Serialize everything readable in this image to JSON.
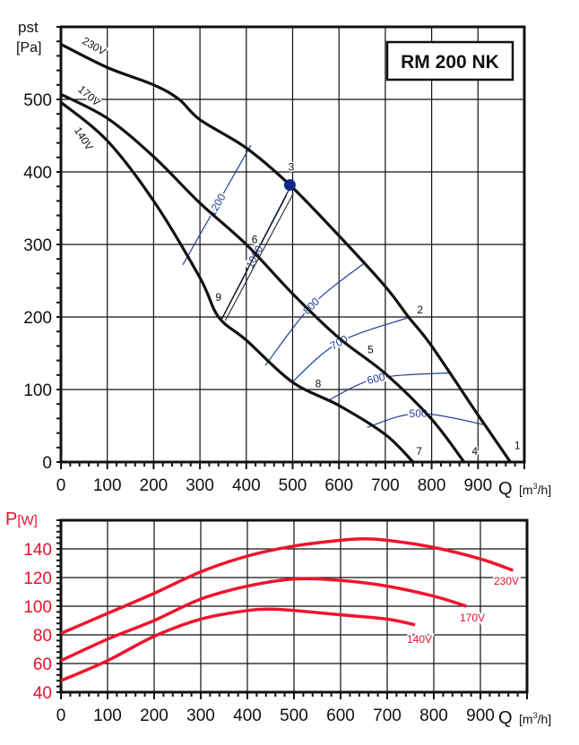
{
  "chart_data": [
    {
      "type": "line",
      "title": "RM 200 NK",
      "ylabel": "pst",
      "yunit": "[Pa]",
      "xlabel": "Q",
      "xunit_pre": "[m",
      "xunit_sup": "3",
      "xunit_post": "/h]",
      "xlim": [
        0,
        1000
      ],
      "ylim": [
        0,
        600
      ],
      "xticks": [
        0,
        100,
        200,
        300,
        400,
        500,
        600,
        700,
        800,
        900
      ],
      "yticks": [
        0,
        100,
        200,
        300,
        400,
        500
      ],
      "grid": true,
      "series": [
        {
          "name": "230V",
          "color": "#111111",
          "x": [
            0,
            100,
            200,
            255,
            300,
            400,
            494,
            600,
            700,
            750,
            800,
            900,
            970
          ],
          "y": [
            576,
            544,
            520,
            500,
            472,
            433,
            382,
            312,
            242,
            200,
            160,
            65,
            0
          ]
        },
        {
          "name": "170V",
          "color": "#111111",
          "x": [
            0,
            100,
            200,
            300,
            400,
            500,
            600,
            700,
            800,
            870
          ],
          "y": [
            507,
            474,
            421,
            357,
            300,
            232,
            171,
            122,
            59,
            0
          ]
        },
        {
          "name": "140V",
          "color": "#111111",
          "x": [
            0,
            100,
            200,
            300,
            340,
            400,
            500,
            600,
            700,
            760
          ],
          "y": [
            496,
            443,
            360,
            254,
            200,
            168,
            110,
            78,
            38,
            0
          ]
        }
      ],
      "iso_lines": [
        {
          "label": "1200",
          "color": "#1f3f9a",
          "x": [
            263,
            410
          ],
          "y": [
            272,
            437
          ]
        },
        {
          "label": "1000",
          "color": "#1f3f9a",
          "x": [
            348,
            487
          ],
          "y": [
            198,
            368
          ]
        },
        {
          "label": "800",
          "color": "#1f3f9a",
          "x": [
            441,
            540,
            656
          ],
          "y": [
            133,
            215,
            275
          ]
        },
        {
          "label": "700",
          "color": "#1f3f9a",
          "x": [
            497,
            600,
            754
          ],
          "y": [
            109,
            165,
            200
          ]
        },
        {
          "label": "600",
          "color": "#1f3f9a",
          "x": [
            574,
            680,
            839
          ],
          "y": [
            84,
            115,
            123
          ]
        },
        {
          "label": "500",
          "color": "#1f3f9a",
          "x": [
            661,
            771,
            917
          ],
          "y": [
            48,
            67,
            51
          ]
        }
      ],
      "system_line": {
        "x": [
          345,
          494
        ],
        "y": [
          195,
          378
        ]
      },
      "operating_point": {
        "label": "3",
        "x": 494,
        "y": 382,
        "color": "#0a2a8c"
      },
      "point_labels": [
        {
          "label": "1",
          "x": 985,
          "y": 18
        },
        {
          "label": "2",
          "x": 775,
          "y": 205
        },
        {
          "label": "3",
          "x": 497,
          "y": 402
        },
        {
          "label": "4",
          "x": 893,
          "y": 10
        },
        {
          "label": "5",
          "x": 668,
          "y": 150
        },
        {
          "label": "6",
          "x": 418,
          "y": 302
        },
        {
          "label": "7",
          "x": 773,
          "y": 10
        },
        {
          "label": "8",
          "x": 555,
          "y": 103
        },
        {
          "label": "9",
          "x": 340,
          "y": 222
        }
      ]
    },
    {
      "type": "line",
      "ylabel": "P",
      "yunit": "[W]",
      "xlabel": "Q",
      "xunit_pre": "[m",
      "xunit_sup": "3",
      "xunit_post": "/h]",
      "xlim": [
        0,
        1000
      ],
      "ylim": [
        40,
        160
      ],
      "xticks": [
        0,
        100,
        200,
        300,
        400,
        500,
        600,
        700,
        800,
        900
      ],
      "yticks": [
        40,
        60,
        80,
        100,
        120,
        140
      ],
      "grid": true,
      "color": "#e8112d",
      "series": [
        {
          "name": "230V",
          "color": "#f0142d",
          "x": [
            0,
            100,
            200,
            300,
            400,
            500,
            600,
            650,
            700,
            800,
            900,
            970
          ],
          "y": [
            81,
            95,
            109,
            124,
            135,
            142,
            146,
            147,
            146,
            141,
            133,
            125
          ]
        },
        {
          "name": "170V",
          "color": "#f0142d",
          "x": [
            0,
            100,
            200,
            300,
            400,
            500,
            600,
            700,
            800,
            870
          ],
          "y": [
            62,
            77,
            90,
            105,
            114,
            119,
            118,
            114,
            107,
            100
          ]
        },
        {
          "name": "140V",
          "color": "#f0142d",
          "x": [
            0,
            100,
            200,
            300,
            400,
            450,
            500,
            600,
            700,
            760
          ],
          "y": [
            48,
            62,
            79,
            91,
            97,
            98,
            97,
            94,
            91,
            87
          ]
        }
      ]
    }
  ]
}
